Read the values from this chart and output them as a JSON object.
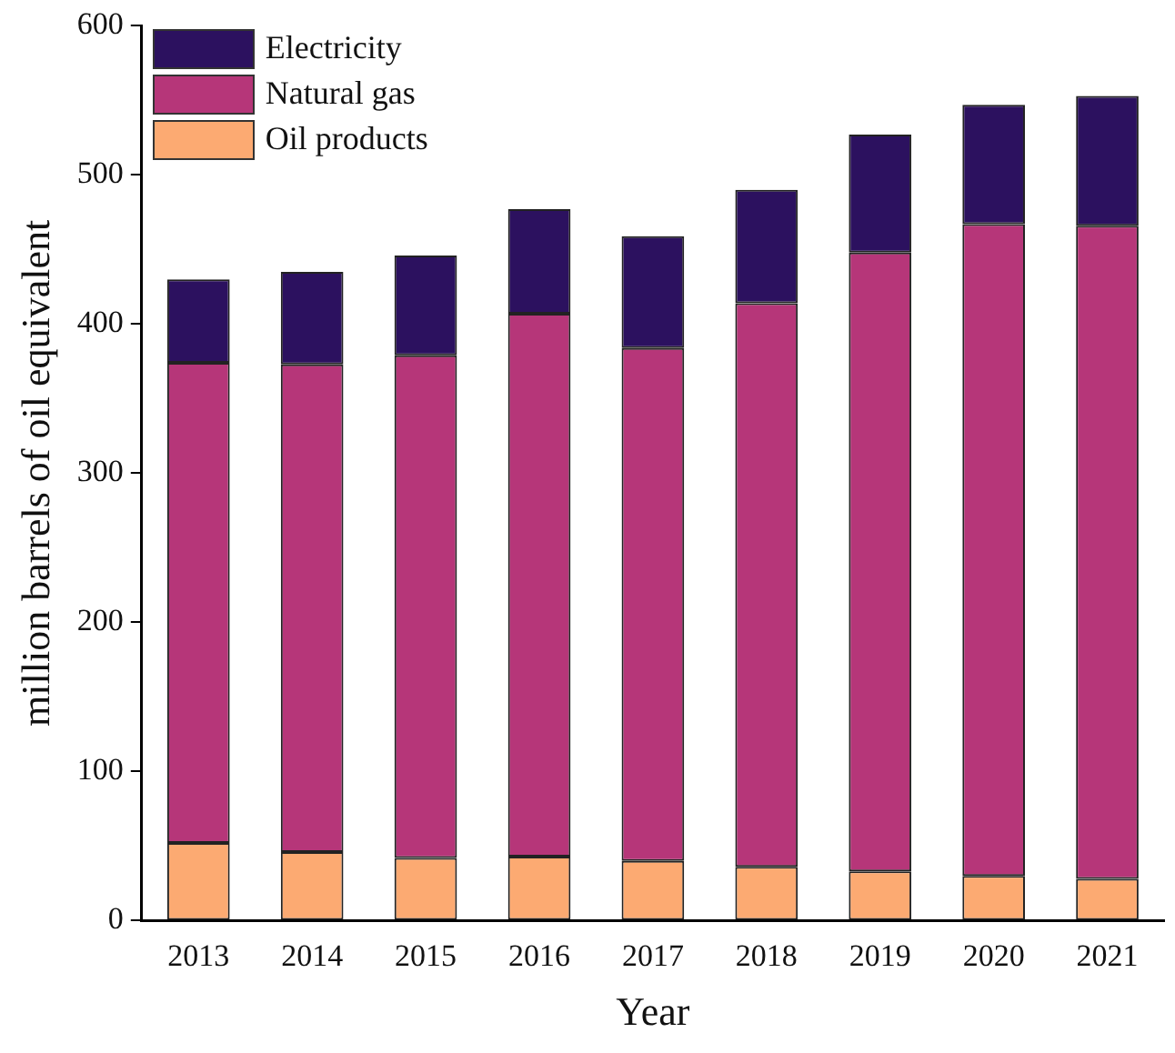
{
  "chart_data": {
    "type": "bar",
    "stacked": true,
    "xlabel": "Year",
    "ylabel": "million barrels of oil equivalent",
    "categories": [
      "2013",
      "2014",
      "2015",
      "2016",
      "2017",
      "2018",
      "2019",
      "2020",
      "2021"
    ],
    "series": [
      {
        "name": "Oil products",
        "color": "#fcaa72",
        "values": [
          52,
          46,
          42,
          43,
          40,
          36,
          33,
          30,
          28
        ]
      },
      {
        "name": "Natural gas",
        "color": "#b63679",
        "values": [
          322,
          327,
          337,
          364,
          344,
          378,
          415,
          437,
          438
        ]
      },
      {
        "name": "Electricity",
        "color": "#2c115f",
        "values": [
          56,
          62,
          67,
          70,
          75,
          76,
          79,
          80,
          87
        ]
      }
    ],
    "ylim": [
      0,
      600
    ],
    "yticks": [
      0,
      100,
      200,
      300,
      400,
      500,
      600
    ],
    "grid": false,
    "legend": "top left"
  }
}
